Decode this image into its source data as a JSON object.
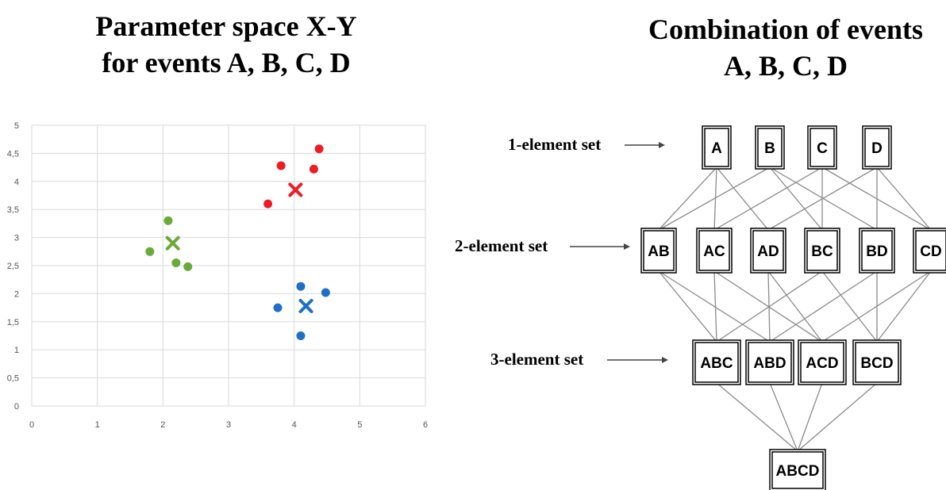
{
  "left_panel": {
    "title_line1": "Parameter space X-Y",
    "title_line2": "for events A, B, C, D"
  },
  "right_panel": {
    "title_line1": "Combination of events",
    "title_line2": "A, B, C, D",
    "set_labels": [
      "1-element set",
      "2-element set",
      "3-element set"
    ],
    "levels": [
      [
        "A",
        "B",
        "C",
        "D"
      ],
      [
        "AB",
        "AC",
        "AD",
        "BC",
        "BD",
        "CD"
      ],
      [
        "ABC",
        "ABD",
        "ACD",
        "BCD"
      ],
      [
        "ABCD"
      ]
    ]
  },
  "chart_data": {
    "type": "scatter",
    "title": "",
    "xlabel": "",
    "ylabel": "",
    "xlim": [
      0,
      6
    ],
    "ylim": [
      0,
      5
    ],
    "x_ticks": [
      "0",
      "1",
      "2",
      "3",
      "4",
      "5",
      "6"
    ],
    "y_ticks": [
      "0",
      "0,5",
      "1",
      "1,5",
      "2",
      "2,5",
      "3",
      "3,5",
      "4",
      "4,5",
      "5"
    ],
    "grid": true,
    "series": [
      {
        "color": "#6aaa3a",
        "points": [
          [
            1.8,
            2.75
          ],
          [
            2.08,
            3.3
          ],
          [
            2.2,
            2.55
          ],
          [
            2.38,
            2.48
          ]
        ],
        "centroid": [
          2.15,
          2.9
        ]
      },
      {
        "color": "#ee1c25",
        "points": [
          [
            3.6,
            3.6
          ],
          [
            3.8,
            4.28
          ],
          [
            4.3,
            4.22
          ],
          [
            4.38,
            4.58
          ]
        ],
        "centroid": [
          4.02,
          3.85
        ]
      },
      {
        "color": "#1f6fc5",
        "points": [
          [
            3.75,
            1.75
          ],
          [
            4.1,
            2.13
          ],
          [
            4.1,
            1.25
          ],
          [
            4.48,
            2.02
          ]
        ],
        "centroid": [
          4.18,
          1.78
        ]
      }
    ]
  }
}
